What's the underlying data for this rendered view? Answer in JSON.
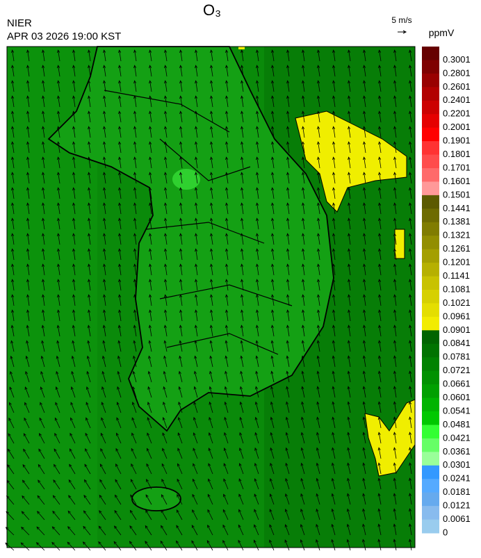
{
  "header": {
    "title": "O₃",
    "agency": "NIER",
    "datetime": "APR 03 2026 19:00 KST"
  },
  "wind_scale": {
    "label": "5 m/s"
  },
  "legend": {
    "unit": "ppmV",
    "labels": [
      "0.3001",
      "0.2801",
      "0.2601",
      "0.2401",
      "0.2201",
      "0.2001",
      "0.1901",
      "0.1801",
      "0.1701",
      "0.1601",
      "0.1501",
      "0.1441",
      "0.1381",
      "0.1321",
      "0.1261",
      "0.1201",
      "0.1141",
      "0.1081",
      "0.1021",
      "0.0961",
      "0.0901",
      "0.0841",
      "0.0781",
      "0.0721",
      "0.0661",
      "0.0601",
      "0.0541",
      "0.0481",
      "0.0421",
      "0.0361",
      "0.0301",
      "0.0241",
      "0.0181",
      "0.0121",
      "0.0061",
      "0"
    ],
    "colors": [
      "#660000",
      "#7f0000",
      "#990000",
      "#b20000",
      "#cc0000",
      "#e50000",
      "#ff0000",
      "#ff3333",
      "#ff4c4c",
      "#ff6a6a",
      "#ff9999",
      "#5c5a00",
      "#6e6b00",
      "#807c00",
      "#928e00",
      "#a49f00",
      "#b6b000",
      "#c8c200",
      "#d6d000",
      "#e4de00",
      "#f2ec00",
      "#006400",
      "#007300",
      "#008200",
      "#009100",
      "#00a000",
      "#00b400",
      "#00c800",
      "#33ff33",
      "#66ff66",
      "#99ff99",
      "#3399ff",
      "#55aaff",
      "#66aaee",
      "#88bbee",
      "#99ccee"
    ]
  }
}
